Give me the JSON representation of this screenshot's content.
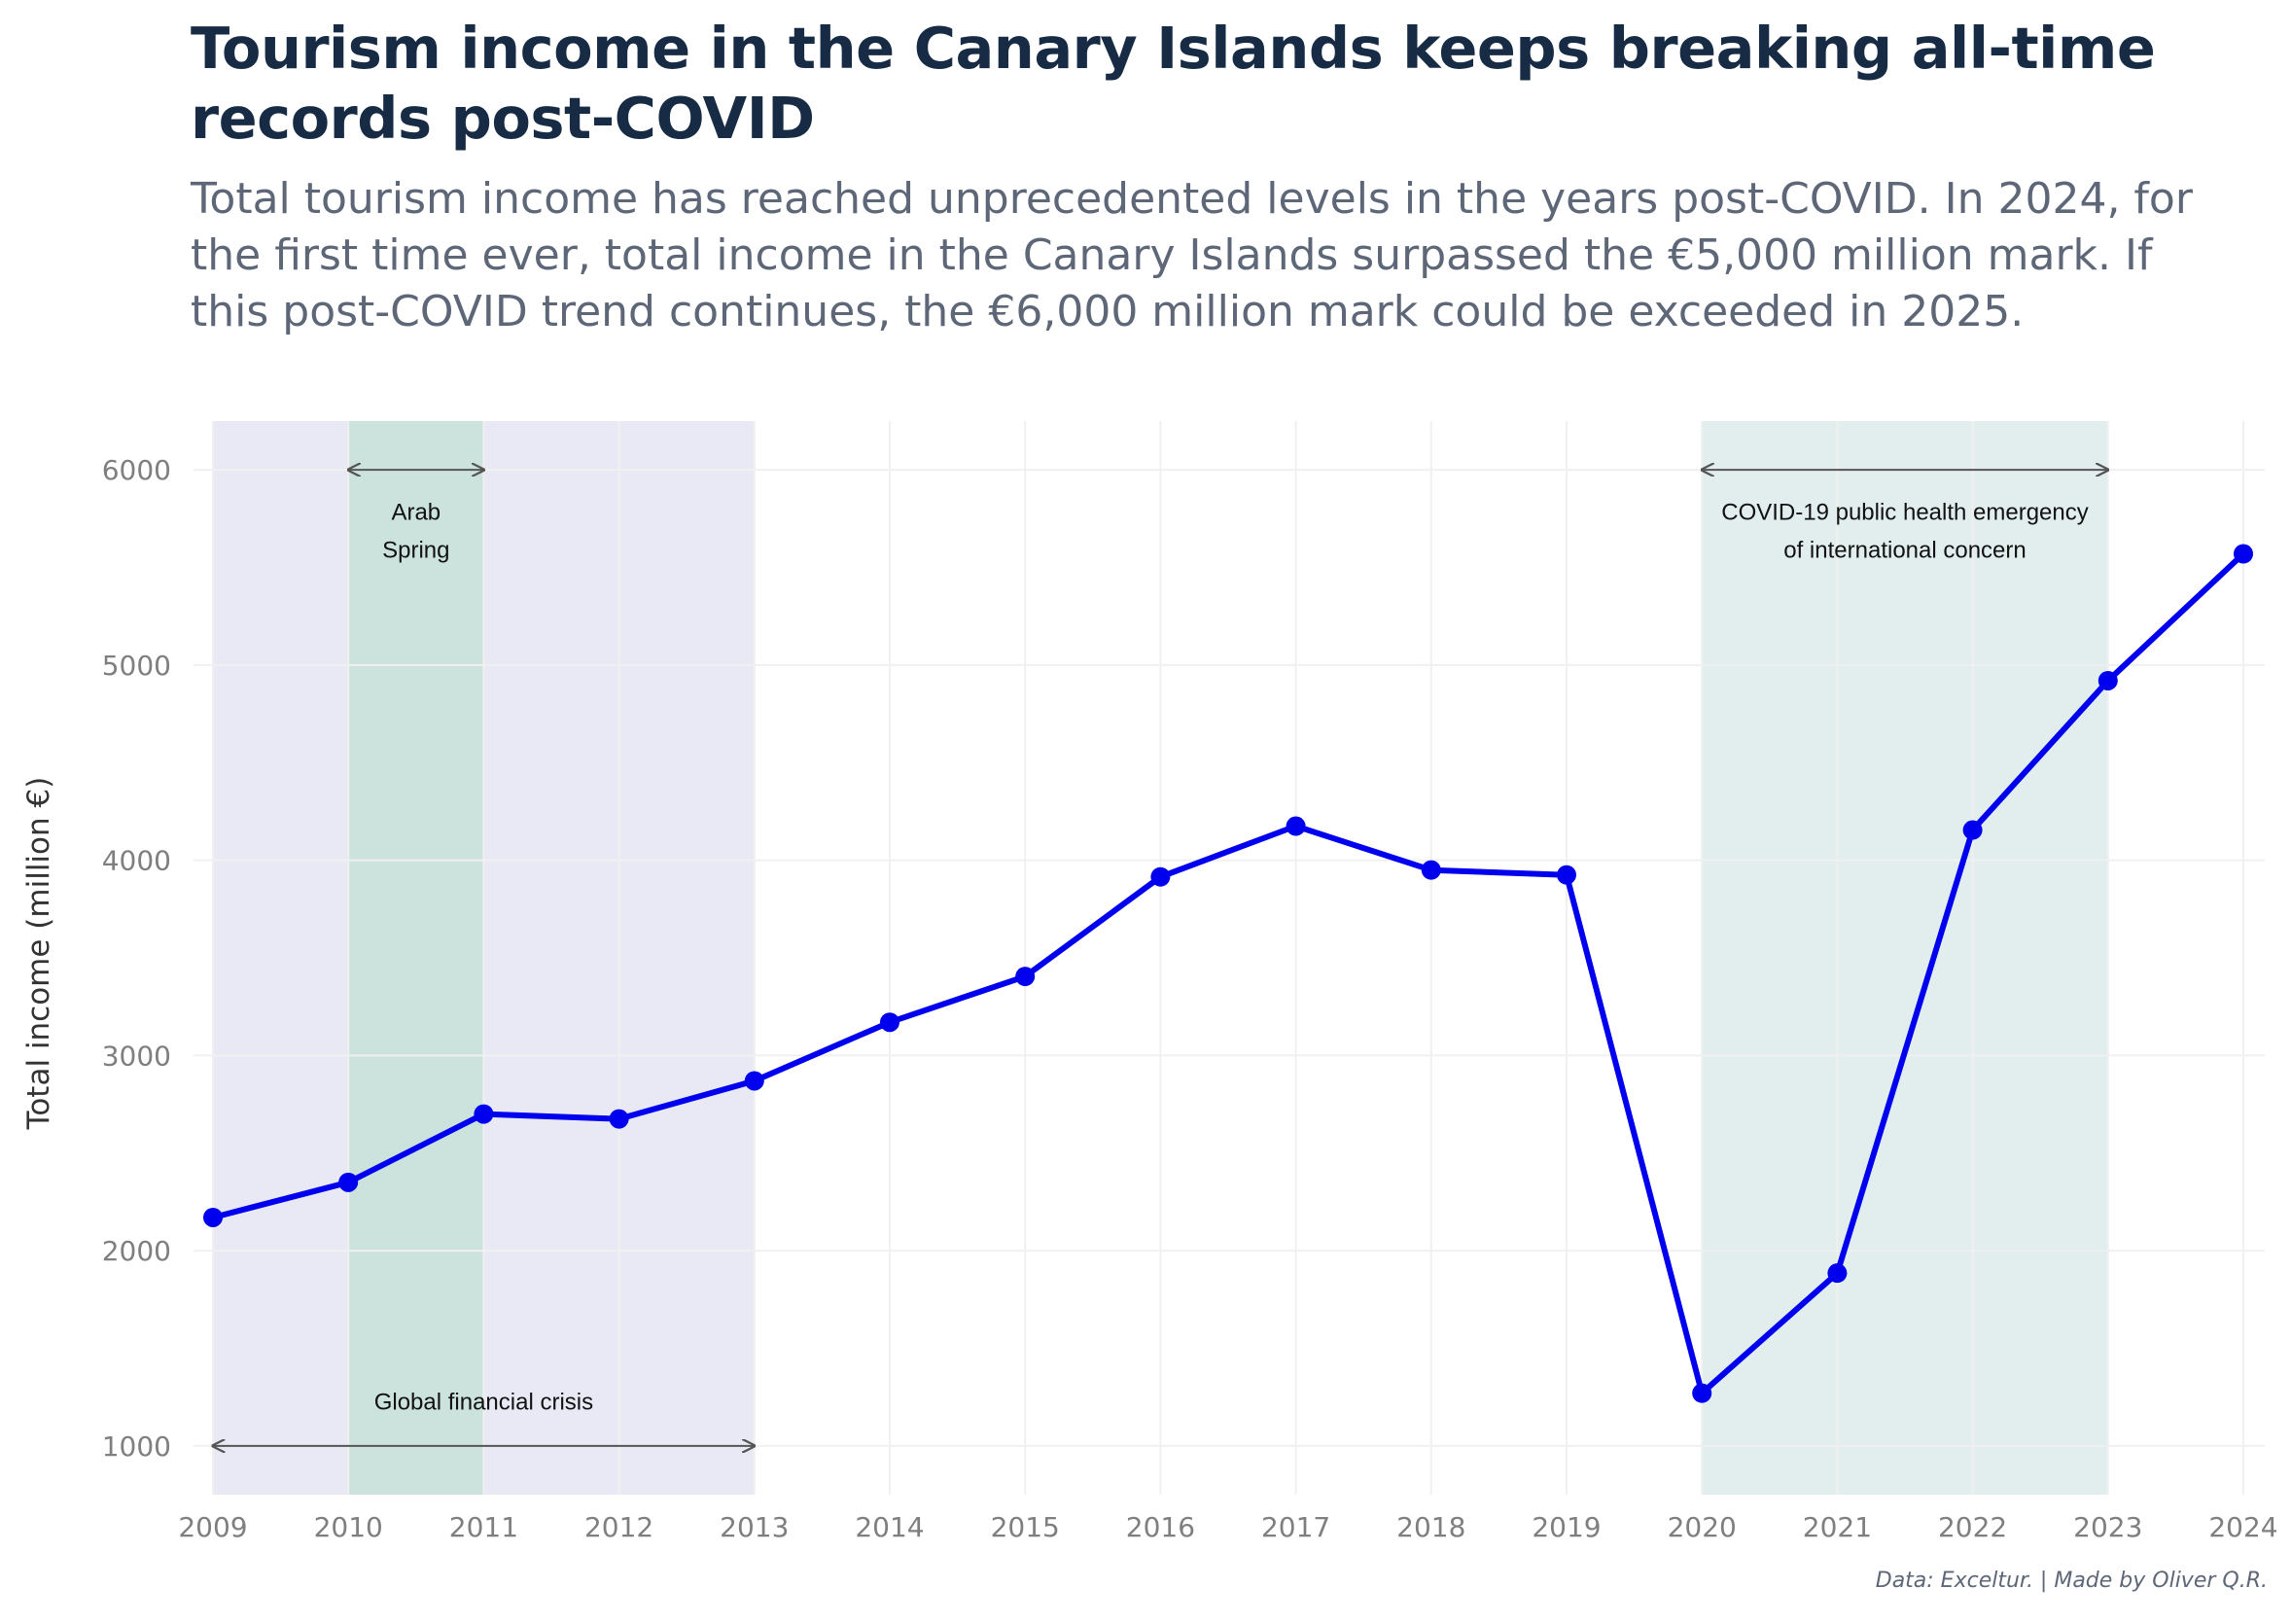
{
  "title": "Tourism income in the Canary Islands keeps breaking all-time records post-COVID",
  "subtitle": "Total tourism income has reached unprecedented levels in the years post-COVID. In 2024, for the first time ever, total income in the Canary Islands surpassed the €5,000 million mark. If this post-COVID trend continues, the €6,000 million mark could be exceeded in 2025.",
  "caption": "Data: Exceltur. | Made by Oliver Q.R.",
  "colors": {
    "line": "#0000ee",
    "financial_crisis_band": "#e9e9f5",
    "arab_spring_band": "#cce3dd",
    "covid_band": "#e1eeed",
    "annotation_arrow": "#555555",
    "grid": "#f0f0f0",
    "tick_text": "#7f7f7f",
    "title": "#172b45",
    "subtitle": "#5d6778"
  },
  "chart_data": {
    "type": "line",
    "xlabel": "",
    "ylabel": "Total income (million €)",
    "xlim": [
      2009,
      2024
    ],
    "ylim": [
      750,
      6250
    ],
    "x_ticks": [
      2009,
      2010,
      2011,
      2012,
      2013,
      2014,
      2015,
      2016,
      2017,
      2018,
      2019,
      2020,
      2021,
      2022,
      2023,
      2024
    ],
    "y_ticks": [
      1000,
      2000,
      3000,
      4000,
      5000,
      6000
    ],
    "grid": true,
    "legend": "none",
    "series": [
      {
        "x": [
          2009,
          2010,
          2011,
          2012,
          2013,
          2014,
          2015,
          2016,
          2017,
          2018,
          2019,
          2020,
          2021,
          2022,
          2023,
          2024
        ],
        "values": [
          2170,
          2350,
          2700,
          2675,
          2870,
          3170,
          3405,
          3915,
          4175,
          3950,
          3925,
          1270,
          1885,
          4155,
          4920,
          5570
        ]
      }
    ],
    "periods": [
      {
        "id": "financial-crisis",
        "start": 2009,
        "end": 2013,
        "label_lines": [
          "Global financial crisis"
        ],
        "arrow_y": 1000,
        "label_y": 1185
      },
      {
        "id": "arab-spring",
        "start": 2010,
        "end": 2011,
        "label_lines": [
          "Arab",
          "Spring"
        ],
        "arrow_y": 6000,
        "label_y": 5745
      },
      {
        "id": "covid",
        "start": 2020,
        "end": 2023,
        "label_lines": [
          "COVID-19 public health emergency",
          "of international concern"
        ],
        "arrow_y": 6000,
        "label_y": 5745
      }
    ]
  }
}
